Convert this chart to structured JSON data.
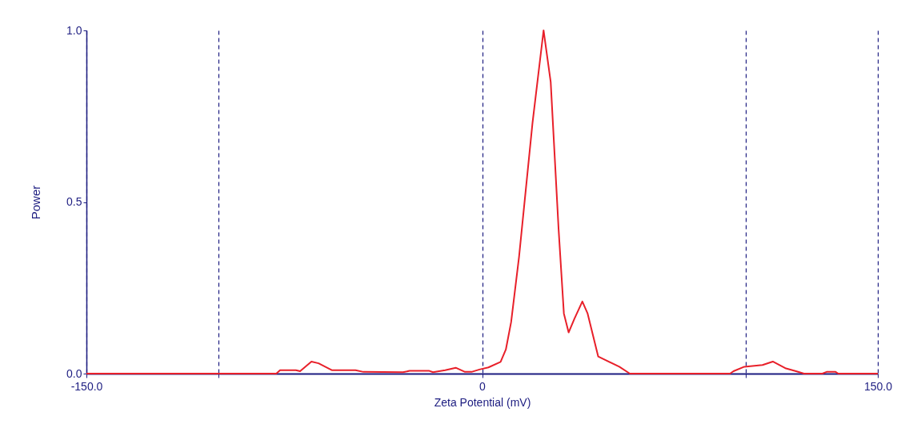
{
  "chart_data": {
    "type": "line",
    "xlabel": "Zeta Potential (mV)",
    "ylabel": "Power",
    "x": [
      -150,
      -78,
      -76.6,
      -70.6,
      -69,
      -64.7,
      -62,
      -57,
      -48,
      -45,
      -30,
      -27.5,
      -20,
      -18.6,
      -14,
      -10,
      -6.5,
      -4,
      -1,
      2.4,
      7,
      9,
      11,
      14,
      19.1,
      23.3,
      26,
      29,
      31,
      32.8,
      35,
      38,
      40,
      44,
      52,
      56,
      94,
      95.3,
      99.4,
      106.3,
      110.2,
      115.2,
      119,
      122,
      129,
      130.6,
      134,
      135,
      150
    ],
    "series": [
      {
        "color": "#e8202a",
        "values": [
          0,
          0,
          0.01,
          0.01,
          0.007,
          0.035,
          0.03,
          0.01,
          0.01,
          0.005,
          0.004,
          0.008,
          0.008,
          0.004,
          0.01,
          0.017,
          0.005,
          0.005,
          0.012,
          0.018,
          0.034,
          0.07,
          0.15,
          0.34,
          0.73,
          1.0,
          0.85,
          0.42,
          0.175,
          0.12,
          0.16,
          0.21,
          0.175,
          0.05,
          0.02,
          0,
          0,
          0.007,
          0.02,
          0.025,
          0.035,
          0.015,
          0.007,
          0,
          0,
          0.005,
          0.005,
          0,
          0
        ]
      }
    ],
    "xlim": [
      -150,
      150
    ],
    "xticks": [
      {
        "value": -150,
        "label": "-150.0"
      },
      {
        "value": -100,
        "label": null
      },
      {
        "value": 0,
        "label": "0"
      },
      {
        "value": 100,
        "label": null
      },
      {
        "value": 150,
        "label": "150.0"
      }
    ],
    "ylim": [
      0,
      1
    ],
    "yticks": [
      {
        "value": 0,
        "label": "0.0"
      },
      {
        "value": 0.5,
        "label": "0.5"
      },
      {
        "value": 1,
        "label": "1.0"
      }
    ],
    "grid": "x",
    "marker": "none",
    "line_style": "solid",
    "legend": false
  }
}
